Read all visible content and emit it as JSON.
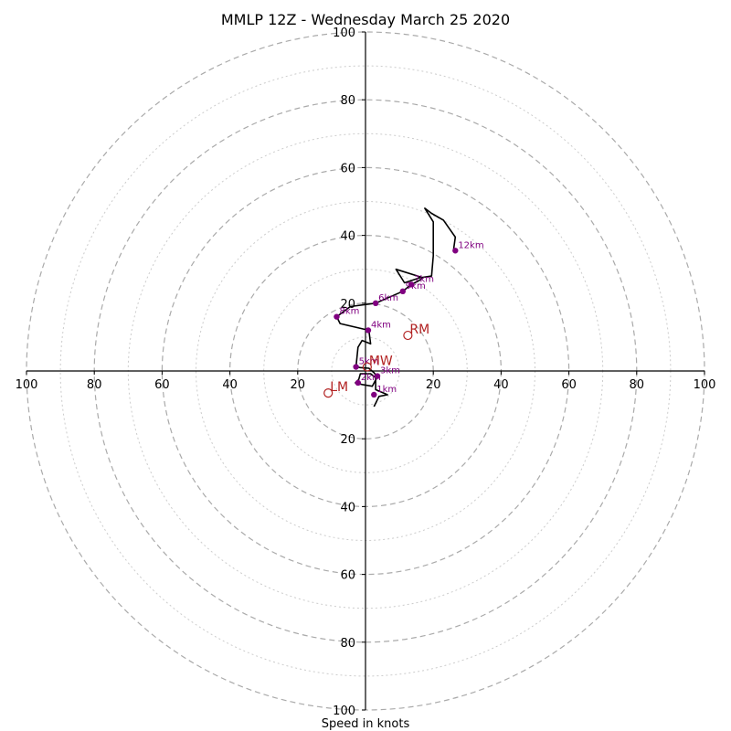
{
  "chart_data": {
    "type": "hodograph",
    "title": "MMLP 12Z - Wednesday March 25 2020",
    "xlabel": "Speed in knots",
    "range": [
      -100,
      100
    ],
    "ring_max": 100,
    "ring_step_major": 20,
    "ring_step_minor": 10,
    "x_ticks": [
      "100",
      "80",
      "60",
      "40",
      "20",
      "20",
      "40",
      "60",
      "80",
      "100"
    ],
    "y_ticks": [
      "100",
      "80",
      "60",
      "40",
      "20",
      "20",
      "40",
      "60",
      "80",
      "100"
    ],
    "hodograph_trace": [
      [
        2.5,
        -10.5
      ],
      [
        4,
        -7.5
      ],
      [
        6.5,
        -7
      ],
      [
        3,
        -5.5
      ],
      [
        3,
        -2
      ],
      [
        1.5,
        -0.8
      ],
      [
        -1.5,
        -0.8
      ],
      [
        -2,
        -2.5
      ],
      [
        -3,
        -3.5
      ],
      [
        -1,
        -4
      ],
      [
        2,
        -4.5
      ],
      [
        3.5,
        -1.7
      ],
      [
        2.5,
        -0.5
      ],
      [
        1,
        0.8
      ],
      [
        -1.5,
        1
      ],
      [
        -2.8,
        1.2
      ],
      [
        -2.2,
        7
      ],
      [
        -1,
        9
      ],
      [
        1.5,
        8
      ],
      [
        1,
        12
      ],
      [
        -7.5,
        14
      ],
      [
        -8.5,
        16
      ],
      [
        -4.5,
        19
      ],
      [
        3,
        20
      ],
      [
        11,
        23.5
      ],
      [
        13.5,
        25.5
      ],
      [
        15.5,
        26.5
      ],
      [
        17,
        27.5
      ],
      [
        9,
        30
      ],
      [
        11.5,
        26
      ],
      [
        16,
        27.5
      ],
      [
        19.5,
        28
      ],
      [
        20,
        34
      ],
      [
        20,
        44
      ],
      [
        17.5,
        48
      ],
      [
        19.5,
        46.5
      ],
      [
        23,
        44.5
      ],
      [
        26.5,
        39.5
      ],
      [
        26,
        36
      ]
    ],
    "height_markers": [
      {
        "label": "1km",
        "x": 2.5,
        "y": -7
      },
      {
        "label": "2km",
        "x": -2.2,
        "y": -3.5
      },
      {
        "label": "3km",
        "x": 3.5,
        "y": -1.5
      },
      {
        "label": "5km",
        "x": -2.8,
        "y": 1.2
      },
      {
        "label": "4km",
        "x": 0.8,
        "y": 12
      },
      {
        "label": "6km",
        "x": 3,
        "y": 20
      },
      {
        "label": "8km",
        "x": -8.5,
        "y": 16
      },
      {
        "label": "9km",
        "x": 11,
        "y": 23.5
      },
      {
        "label": "7km",
        "x": 13.5,
        "y": 25.5
      },
      {
        "label": "12km",
        "x": 26.5,
        "y": 35.5
      }
    ],
    "storm_motion": [
      {
        "label": "RM",
        "x": 12.5,
        "y": 10.5
      },
      {
        "label": "MW",
        "x": 0.5,
        "y": 1.2
      },
      {
        "label": "LM",
        "x": -11,
        "y": -6.5
      }
    ],
    "colors": {
      "trace": "#000000",
      "height_marker": "#800080",
      "storm_motion": "#b22222",
      "grid_major": "#aaaaaa",
      "grid_minor": "#cccccc"
    }
  }
}
